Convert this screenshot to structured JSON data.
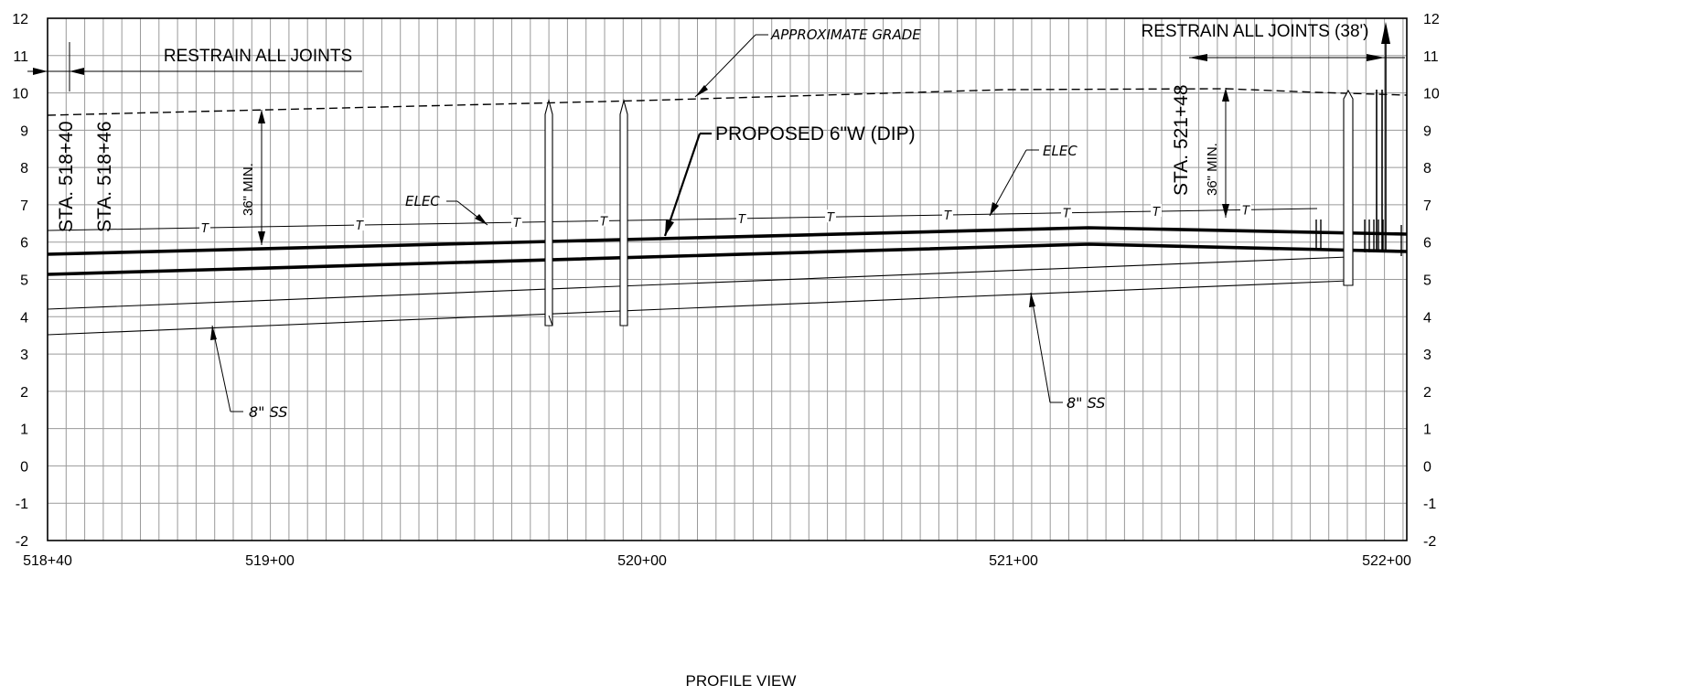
{
  "elevation_labels": [
    "12",
    "11",
    "10",
    "9",
    "8",
    "7",
    "6",
    "5",
    "4",
    "3",
    "2",
    "1",
    "0",
    "-1",
    "-2"
  ],
  "elevation_labels_right": [
    "12",
    "11",
    "10",
    "9",
    "8",
    "7",
    "6",
    "5",
    "4",
    "3",
    "2",
    "1",
    "0",
    "-1",
    "-2"
  ],
  "station_labels": [
    "518+40",
    "519+00",
    "520+00",
    "521+00",
    "522+00"
  ],
  "view_title": "PROFILE VIEW",
  "annotations": {
    "restrain_left": "RESTRAIN ALL JOINTS",
    "restrain_right": "RESTRAIN ALL JOINTS (38')",
    "sta_518_40": "STA. 518+40",
    "sta_518_46": "STA. 518+46",
    "sta_521_48": "STA. 521+48",
    "min_cover_left": "36\" MIN.",
    "min_cover_right": "36\" MIN.",
    "approx_grade": "APPROXIMATE  GRADE",
    "proposed": "PROPOSED 6\"W (DIP)",
    "elec_left": "ELEC",
    "elec_right": "ELEC",
    "ss_left": "8\"  SS",
    "ss_right": "8\"  SS",
    "tel_marker": "T"
  }
}
